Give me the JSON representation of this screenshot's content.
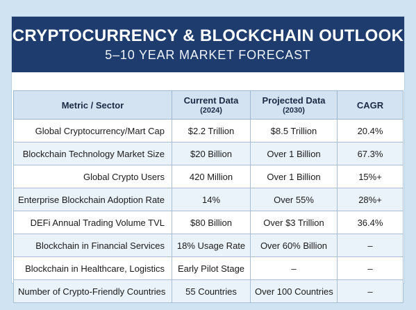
{
  "header": {
    "title": "CRYPTOCURRENCY & BLOCKCHAIN OUTLOOK",
    "subtitle": "5–10 YEAR MARKET FORECAST"
  },
  "table": {
    "columns": [
      {
        "label": "Metric / Sector",
        "sub": ""
      },
      {
        "label": "Current Data",
        "sub": "(2024)"
      },
      {
        "label": "Projected Data",
        "sub": "(2030)"
      },
      {
        "label": "CAGR",
        "sub": ""
      }
    ],
    "rows": [
      {
        "metric": "Global Cryptocurrency/Mart Cap",
        "current": "$2.2 Trillion",
        "projected": "$8.5 Trillion",
        "cagr": "20.4%"
      },
      {
        "metric": "Blockchain Technology Market Size",
        "current": "$20 Billion",
        "projected": "Over 1 Billion",
        "cagr": "67.3%"
      },
      {
        "metric": "Global Crypto Users",
        "current": "420 Million",
        "projected": "Over 1 Billion",
        "cagr": "15%+"
      },
      {
        "metric": "Enterprise Blockchain Adoption Rate",
        "current": "14%",
        "projected": "Over 55%",
        "cagr": "28%+"
      },
      {
        "metric": "DEFi Annual Trading Volume TVL",
        "current": "$80 Billion",
        "projected": "Over $3 Trillion",
        "cagr": "36.4%"
      },
      {
        "metric": "Blockchain in Financial Services",
        "current": "18% Usage Rate",
        "projected": "Over 60% Billion",
        "cagr": "–"
      },
      {
        "metric": "Blockchain in Healthcare, Logistics",
        "current": "Early Pilot Stage",
        "projected": "–",
        "cagr": "–"
      },
      {
        "metric": "Number of Crypto-Friendly Countries",
        "current": "55 Countries",
        "projected": "Over 100 Countries",
        "cagr": "–"
      }
    ]
  }
}
